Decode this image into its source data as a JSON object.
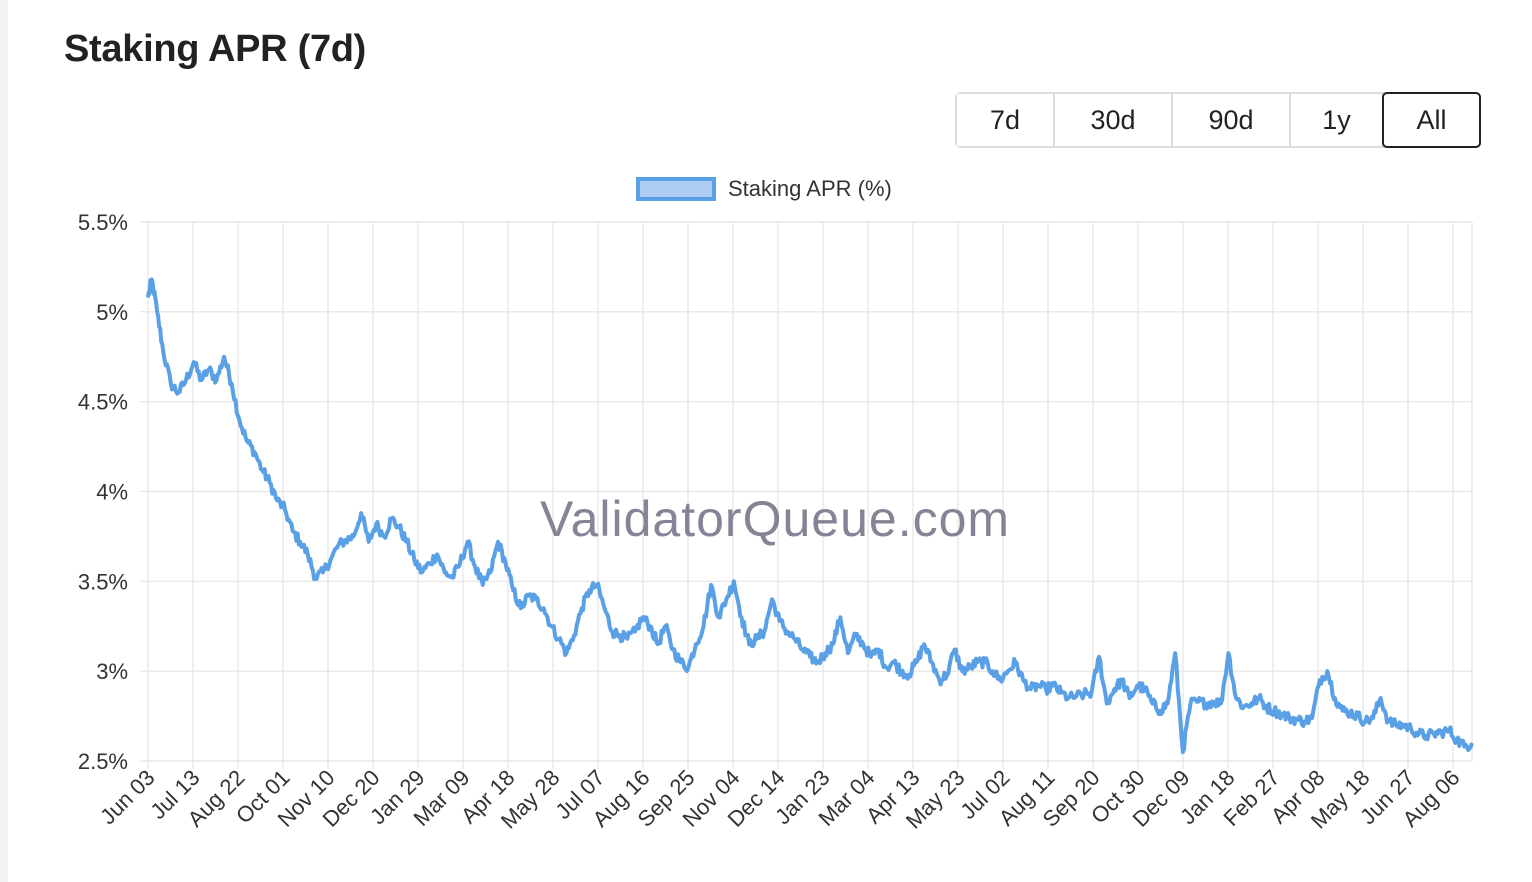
{
  "page": {
    "title": "Staking APR (7d)",
    "watermark": "ValidatorQueue.com"
  },
  "range_selector": {
    "options": [
      "7d",
      "30d",
      "90d",
      "1y",
      "All"
    ],
    "active": "All"
  },
  "colors": {
    "line": "#5aa0e6",
    "legend_fill": "#aecdf2",
    "grid": "#e4e4e4"
  },
  "chart_data": {
    "type": "line",
    "title": "Staking APR (7d)",
    "legend_position": "top-center",
    "grid": true,
    "series": [
      {
        "name": "Staking APR (%)",
        "anchors": [
          [
            0,
            5.08
          ],
          [
            0.5,
            5.18
          ],
          [
            1.2,
            5.0
          ],
          [
            2,
            4.78
          ],
          [
            3,
            4.6
          ],
          [
            4,
            4.55
          ],
          [
            5,
            4.62
          ],
          [
            6,
            4.72
          ],
          [
            7,
            4.62
          ],
          [
            8,
            4.68
          ],
          [
            9,
            4.62
          ],
          [
            10,
            4.75
          ],
          [
            11,
            4.6
          ],
          [
            12,
            4.4
          ],
          [
            13,
            4.28
          ],
          [
            14,
            4.22
          ],
          [
            15,
            4.12
          ],
          [
            16,
            4.05
          ],
          [
            17,
            3.95
          ],
          [
            18,
            3.9
          ],
          [
            19,
            3.78
          ],
          [
            20,
            3.72
          ],
          [
            21,
            3.65
          ],
          [
            22,
            3.52
          ],
          [
            23,
            3.55
          ],
          [
            24,
            3.62
          ],
          [
            25,
            3.7
          ],
          [
            26,
            3.73
          ],
          [
            27,
            3.75
          ],
          [
            28,
            3.88
          ],
          [
            29,
            3.72
          ],
          [
            30,
            3.82
          ],
          [
            31,
            3.75
          ],
          [
            32,
            3.85
          ],
          [
            33,
            3.8
          ],
          [
            34,
            3.72
          ],
          [
            35,
            3.62
          ],
          [
            36,
            3.55
          ],
          [
            37,
            3.6
          ],
          [
            38,
            3.65
          ],
          [
            39,
            3.55
          ],
          [
            40,
            3.52
          ],
          [
            41,
            3.6
          ],
          [
            42,
            3.72
          ],
          [
            43,
            3.58
          ],
          [
            44,
            3.48
          ],
          [
            45,
            3.55
          ],
          [
            46,
            3.72
          ],
          [
            47,
            3.6
          ],
          [
            48,
            3.45
          ],
          [
            49,
            3.35
          ],
          [
            50,
            3.42
          ],
          [
            51,
            3.4
          ],
          [
            52,
            3.35
          ],
          [
            53,
            3.25
          ],
          [
            54,
            3.18
          ],
          [
            55,
            3.1
          ],
          [
            56,
            3.2
          ],
          [
            57,
            3.35
          ],
          [
            58,
            3.45
          ],
          [
            59,
            3.48
          ],
          [
            60,
            3.35
          ],
          [
            61,
            3.22
          ],
          [
            62,
            3.2
          ],
          [
            63,
            3.18
          ],
          [
            64,
            3.22
          ],
          [
            65,
            3.3
          ],
          [
            66,
            3.25
          ],
          [
            67,
            3.15
          ],
          [
            68,
            3.25
          ],
          [
            69,
            3.12
          ],
          [
            70,
            3.05
          ],
          [
            71,
            3.02
          ],
          [
            72,
            3.15
          ],
          [
            73,
            3.25
          ],
          [
            74,
            3.48
          ],
          [
            75,
            3.3
          ],
          [
            76,
            3.4
          ],
          [
            77,
            3.5
          ],
          [
            78,
            3.3
          ],
          [
            79,
            3.15
          ],
          [
            80,
            3.18
          ],
          [
            81,
            3.22
          ],
          [
            82,
            3.4
          ],
          [
            83,
            3.28
          ],
          [
            84,
            3.22
          ],
          [
            85,
            3.18
          ],
          [
            86,
            3.12
          ],
          [
            87,
            3.08
          ],
          [
            88,
            3.05
          ],
          [
            89,
            3.1
          ],
          [
            90,
            3.15
          ],
          [
            91,
            3.3
          ],
          [
            92,
            3.1
          ],
          [
            93,
            3.2
          ],
          [
            94,
            3.15
          ],
          [
            95,
            3.08
          ],
          [
            96,
            3.12
          ],
          [
            97,
            3.02
          ],
          [
            98,
            3.05
          ],
          [
            99,
            3.0
          ],
          [
            100,
            2.98
          ],
          [
            101,
            3.05
          ],
          [
            102,
            3.15
          ],
          [
            103,
            3.05
          ],
          [
            104,
            2.95
          ],
          [
            105,
            2.98
          ],
          [
            106,
            3.12
          ],
          [
            107,
            3.0
          ],
          [
            108,
            3.02
          ],
          [
            109,
            3.05
          ],
          [
            110,
            3.05
          ],
          [
            111,
            3.0
          ],
          [
            112,
            2.95
          ],
          [
            113,
            3.0
          ],
          [
            114,
            3.05
          ],
          [
            115,
            2.95
          ],
          [
            116,
            2.9
          ],
          [
            117,
            2.92
          ],
          [
            118,
            2.9
          ],
          [
            119,
            2.92
          ],
          [
            120,
            2.88
          ],
          [
            121,
            2.85
          ],
          [
            122,
            2.86
          ],
          [
            123,
            2.87
          ],
          [
            124,
            2.88
          ],
          [
            125,
            3.08
          ],
          [
            126,
            2.82
          ],
          [
            127,
            2.9
          ],
          [
            128,
            2.95
          ],
          [
            129,
            2.85
          ],
          [
            130,
            2.92
          ],
          [
            131,
            2.9
          ],
          [
            132,
            2.82
          ],
          [
            133,
            2.78
          ],
          [
            134,
            2.82
          ],
          [
            135,
            3.1
          ],
          [
            136,
            2.55
          ],
          [
            137,
            2.82
          ],
          [
            138,
            2.83
          ],
          [
            139,
            2.82
          ],
          [
            140,
            2.83
          ],
          [
            141,
            2.82
          ],
          [
            142,
            3.1
          ],
          [
            143,
            2.85
          ],
          [
            144,
            2.8
          ],
          [
            145,
            2.82
          ],
          [
            146,
            2.85
          ],
          [
            147,
            2.8
          ],
          [
            148,
            2.78
          ],
          [
            149,
            2.76
          ],
          [
            150,
            2.74
          ],
          [
            151,
            2.73
          ],
          [
            152,
            2.72
          ],
          [
            153,
            2.74
          ],
          [
            154,
            2.95
          ],
          [
            155,
            3.0
          ],
          [
            156,
            2.85
          ],
          [
            157,
            2.78
          ],
          [
            158,
            2.77
          ],
          [
            159,
            2.75
          ],
          [
            160,
            2.72
          ],
          [
            161,
            2.74
          ],
          [
            162,
            2.85
          ],
          [
            163,
            2.72
          ],
          [
            164,
            2.7
          ],
          [
            165,
            2.7
          ],
          [
            166,
            2.68
          ],
          [
            167,
            2.65
          ],
          [
            168,
            2.64
          ],
          [
            169,
            2.65
          ],
          [
            170,
            2.66
          ],
          [
            171,
            2.67
          ],
          [
            172,
            2.62
          ],
          [
            173,
            2.58
          ],
          [
            174,
            2.6
          ]
        ]
      }
    ],
    "x_tick_labels": [
      "Jun 03",
      "Jul 13",
      "Aug 22",
      "Oct 01",
      "Nov 10",
      "Dec 20",
      "Jan 29",
      "Mar 09",
      "Apr 18",
      "May 28",
      "Jul 07",
      "Aug 16",
      "Sep 25",
      "Nov 04",
      "Dec 14",
      "Jan 23",
      "Mar 04",
      "Apr 13",
      "May 23",
      "Jul 02",
      "Aug 11",
      "Sep 20",
      "Oct 30",
      "Dec 09",
      "Jan 18",
      "Feb 27",
      "Apr 08",
      "May 18",
      "Jun 27",
      "Aug 06"
    ],
    "y_ticks": [
      2.5,
      3,
      3.5,
      4,
      4.5,
      5,
      5.5
    ],
    "y_tick_labels": [
      "2.5%",
      "3%",
      "3.5%",
      "4%",
      "4.5%",
      "5%",
      "5.5%"
    ],
    "ylim": [
      2.5,
      5.5
    ],
    "xlim": [
      0,
      174
    ]
  }
}
